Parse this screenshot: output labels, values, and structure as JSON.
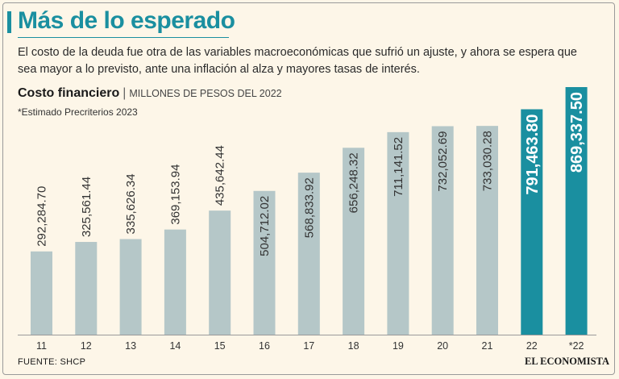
{
  "header": {
    "title": "Más de lo esperado",
    "subtitle": "El costo de la deuda fue otra de las variables macroeconómicas que sufrió un ajuste, y ahora se espera que sea mayor a lo previsto, ante una inflación al alza y mayores tasas de interés."
  },
  "chart_heading": {
    "title": "Costo financiero",
    "separator": "|",
    "units": "MILLONES DE PESOS DEL 2022",
    "note": "*Estimado Precriterios 2023"
  },
  "footer": {
    "source": "FUENTE: SHCP",
    "brand": "EL ECONOMISTA"
  },
  "colors": {
    "accent": "#1a8fa0",
    "bar_default": "#b5c7c8",
    "bar_highlight": "#1a8fa0",
    "label_dark": "#333333",
    "label_light": "#ffffff"
  },
  "chart_data": {
    "type": "bar",
    "title": "Costo financiero",
    "ylabel": "Millones de pesos del 2022",
    "xlabel": "",
    "ylim": [
      0,
      869337.5
    ],
    "grid": false,
    "categories": [
      "11",
      "12",
      "13",
      "14",
      "15",
      "16",
      "17",
      "18",
      "19",
      "20",
      "21",
      "22",
      "*22"
    ],
    "values": [
      292284.7,
      325561.44,
      335626.34,
      369153.94,
      435642.44,
      504712.02,
      568833.92,
      656248.32,
      711141.52,
      732052.69,
      733030.28,
      791463.8,
      869337.5
    ],
    "value_labels": [
      "292,284.70",
      "325,561.44",
      "335,626.34",
      "369,153.94",
      "435,642.44",
      "504,712.02",
      "568,833.92",
      "656,248.32",
      "711,141.52",
      "732,052.69",
      "733,030.28",
      "791,463.80",
      "869,337.50"
    ],
    "highlighted": [
      false,
      false,
      false,
      false,
      false,
      false,
      false,
      false,
      false,
      false,
      false,
      true,
      true
    ]
  }
}
